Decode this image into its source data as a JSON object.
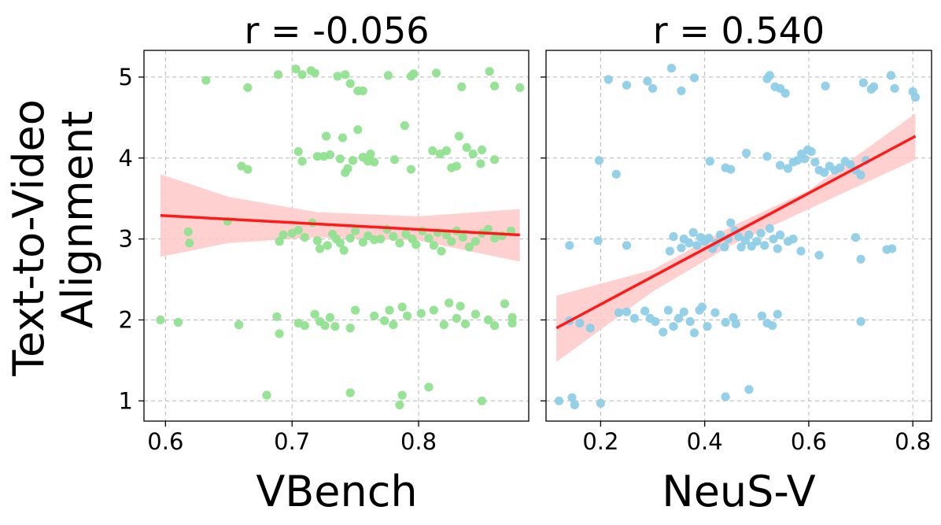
{
  "chart_data": {
    "type": "scatter",
    "ylabel_lines": [
      "Text-to-Video",
      "Alignment"
    ],
    "ylim": [
      0.75,
      5.33
    ],
    "yticks": [
      1,
      2,
      3,
      4,
      5
    ],
    "panels": [
      {
        "title": "r = -0.056",
        "xlabel": "VBench",
        "xlim": [
          0.583,
          0.887
        ],
        "xticks": [
          0.6,
          0.7,
          0.8
        ],
        "color": "#90e28f",
        "fit": {
          "x": [
            0.596,
            0.88
          ],
          "y": [
            3.29,
            3.05
          ]
        },
        "band": {
          "x": [
            0.596,
            0.65,
            0.72,
            0.8,
            0.88
          ],
          "lower": [
            2.78,
            2.95,
            3.02,
            2.98,
            2.72
          ],
          "upper": [
            3.8,
            3.52,
            3.33,
            3.28,
            3.37
          ]
        },
        "points": [
          [
            0.632,
            4.96
          ],
          [
            0.665,
            4.87
          ],
          [
            0.689,
            5.03
          ],
          [
            0.703,
            5.1
          ],
          [
            0.708,
            5.03
          ],
          [
            0.715,
            5.08
          ],
          [
            0.718,
            5.05
          ],
          [
            0.736,
            5.01
          ],
          [
            0.742,
            5.03
          ],
          [
            0.746,
            4.92
          ],
          [
            0.752,
            4.83
          ],
          [
            0.756,
            4.83
          ],
          [
            0.776,
            5.02
          ],
          [
            0.794,
            5.01
          ],
          [
            0.796,
            5.04
          ],
          [
            0.814,
            5.05
          ],
          [
            0.834,
            4.88
          ],
          [
            0.856,
            5.07
          ],
          [
            0.86,
            4.89
          ],
          [
            0.88,
            4.87
          ],
          [
            0.66,
            3.9
          ],
          [
            0.665,
            3.86
          ],
          [
            0.705,
            4.08
          ],
          [
            0.708,
            3.96
          ],
          [
            0.72,
            4.02
          ],
          [
            0.725,
            4.02
          ],
          [
            0.727,
            4.27
          ],
          [
            0.73,
            4.04
          ],
          [
            0.738,
            3.99
          ],
          [
            0.74,
            4.25
          ],
          [
            0.742,
            3.82
          ],
          [
            0.744,
            3.87
          ],
          [
            0.748,
            3.97
          ],
          [
            0.752,
            4.35
          ],
          [
            0.756,
            4.01
          ],
          [
            0.76,
            3.96
          ],
          [
            0.762,
            4.05
          ],
          [
            0.765,
            3.95
          ],
          [
            0.781,
            3.98
          ],
          [
            0.789,
            4.4
          ],
          [
            0.794,
            3.86
          ],
          [
            0.811,
            4.09
          ],
          [
            0.817,
            4.05
          ],
          [
            0.822,
            4.09
          ],
          [
            0.826,
            3.88
          ],
          [
            0.83,
            3.9
          ],
          [
            0.832,
            4.27
          ],
          [
            0.838,
            4.13
          ],
          [
            0.843,
            4.05
          ],
          [
            0.849,
            3.93
          ],
          [
            0.85,
            4.1
          ],
          [
            0.86,
            3.98
          ],
          [
            0.618,
            3.09
          ],
          [
            0.619,
            2.95
          ],
          [
            0.649,
            3.22
          ],
          [
            0.69,
            2.97
          ],
          [
            0.693,
            3.05
          ],
          [
            0.7,
            3.07
          ],
          [
            0.705,
            3.11
          ],
          [
            0.71,
            3.02
          ],
          [
            0.716,
            3.2
          ],
          [
            0.72,
            2.98
          ],
          [
            0.722,
            2.88
          ],
          [
            0.728,
            2.92
          ],
          [
            0.732,
            3.06
          ],
          [
            0.735,
            3.0
          ],
          [
            0.738,
            2.95
          ],
          [
            0.741,
            2.86
          ],
          [
            0.746,
            3.01
          ],
          [
            0.75,
            3.1
          ],
          [
            0.756,
            2.96
          ],
          [
            0.76,
            3.04
          ],
          [
            0.765,
            2.99
          ],
          [
            0.77,
            3.0
          ],
          [
            0.775,
            3.12
          ],
          [
            0.78,
            3.03
          ],
          [
            0.785,
            2.95
          ],
          [
            0.79,
            3.06
          ],
          [
            0.795,
            3.0
          ],
          [
            0.798,
            2.93
          ],
          [
            0.803,
            3.1
          ],
          [
            0.808,
            3.01
          ],
          [
            0.812,
            2.92
          ],
          [
            0.815,
            3.08
          ],
          [
            0.818,
            2.85
          ],
          [
            0.822,
            3.05
          ],
          [
            0.826,
            2.97
          ],
          [
            0.83,
            3.1
          ],
          [
            0.835,
            3.02
          ],
          [
            0.84,
            2.9
          ],
          [
            0.845,
            2.97
          ],
          [
            0.85,
            3.07
          ],
          [
            0.855,
            3.12
          ],
          [
            0.86,
            3.01
          ],
          [
            0.866,
            3.04
          ],
          [
            0.873,
            3.1
          ],
          [
            0.596,
            2.0
          ],
          [
            0.61,
            1.97
          ],
          [
            0.658,
            1.94
          ],
          [
            0.688,
            2.04
          ],
          [
            0.69,
            1.83
          ],
          [
            0.705,
            1.96
          ],
          [
            0.71,
            1.93
          ],
          [
            0.718,
            2.07
          ],
          [
            0.722,
            1.98
          ],
          [
            0.726,
            1.93
          ],
          [
            0.73,
            2.03
          ],
          [
            0.734,
            1.92
          ],
          [
            0.746,
            1.9
          ],
          [
            0.75,
            2.12
          ],
          [
            0.765,
            2.05
          ],
          [
            0.773,
            1.99
          ],
          [
            0.777,
            2.12
          ],
          [
            0.78,
            1.94
          ],
          [
            0.787,
            2.16
          ],
          [
            0.791,
            2.05
          ],
          [
            0.802,
            2.08
          ],
          [
            0.812,
            2.12
          ],
          [
            0.82,
            1.94
          ],
          [
            0.824,
            2.21
          ],
          [
            0.83,
            2.02
          ],
          [
            0.833,
            2.17
          ],
          [
            0.837,
            1.95
          ],
          [
            0.845,
            2.07
          ],
          [
            0.855,
            2.0
          ],
          [
            0.86,
            1.93
          ],
          [
            0.868,
            2.2
          ],
          [
            0.874,
            2.03
          ],
          [
            0.874,
            1.96
          ],
          [
            0.68,
            1.07
          ],
          [
            0.746,
            1.1
          ],
          [
            0.787,
            1.07
          ],
          [
            0.785,
            0.95
          ],
          [
            0.808,
            1.17
          ],
          [
            0.85,
            1.0
          ]
        ]
      },
      {
        "title": "r = 0.540",
        "xlabel": "NeuS-V",
        "xlim": [
          0.095,
          0.836
        ],
        "xticks": [
          0.2,
          0.4,
          0.6,
          0.8
        ],
        "color": "#8ecde7",
        "fit": {
          "x": [
            0.115,
            0.805
          ],
          "y": [
            1.9,
            4.27
          ]
        },
        "band": {
          "x": [
            0.115,
            0.3,
            0.45,
            0.6,
            0.805
          ],
          "lower": [
            1.48,
            2.35,
            2.92,
            3.37,
            3.98
          ],
          "upper": [
            2.3,
            2.62,
            3.15,
            3.6,
            4.55
          ]
        },
        "points": [
          [
            0.215,
            4.97
          ],
          [
            0.25,
            4.9
          ],
          [
            0.29,
            4.95
          ],
          [
            0.3,
            4.86
          ],
          [
            0.336,
            5.11
          ],
          [
            0.355,
            4.83
          ],
          [
            0.38,
            4.99
          ],
          [
            0.52,
            4.98
          ],
          [
            0.525,
            5.02
          ],
          [
            0.535,
            4.88
          ],
          [
            0.545,
            4.86
          ],
          [
            0.555,
            4.8
          ],
          [
            0.632,
            4.89
          ],
          [
            0.705,
            4.93
          ],
          [
            0.72,
            4.85
          ],
          [
            0.725,
            4.88
          ],
          [
            0.758,
            5.02
          ],
          [
            0.765,
            4.86
          ],
          [
            0.8,
            4.82
          ],
          [
            0.805,
            4.75
          ],
          [
            0.197,
            3.97
          ],
          [
            0.23,
            3.8
          ],
          [
            0.41,
            3.96
          ],
          [
            0.44,
            3.88
          ],
          [
            0.45,
            3.86
          ],
          [
            0.48,
            4.06
          ],
          [
            0.52,
            4.02
          ],
          [
            0.545,
            3.91
          ],
          [
            0.56,
            3.87
          ],
          [
            0.57,
            3.95
          ],
          [
            0.578,
            3.97
          ],
          [
            0.586,
            4.05
          ],
          [
            0.592,
            3.99
          ],
          [
            0.598,
            4.1
          ],
          [
            0.605,
            4.08
          ],
          [
            0.612,
            3.95
          ],
          [
            0.62,
            3.85
          ],
          [
            0.63,
            3.82
          ],
          [
            0.64,
            3.9
          ],
          [
            0.65,
            3.85
          ],
          [
            0.66,
            3.88
          ],
          [
            0.67,
            3.96
          ],
          [
            0.68,
            3.92
          ],
          [
            0.69,
            3.85
          ],
          [
            0.7,
            3.79
          ],
          [
            0.71,
            3.97
          ],
          [
            0.14,
            2.92
          ],
          [
            0.195,
            2.98
          ],
          [
            0.25,
            2.92
          ],
          [
            0.333,
            2.85
          ],
          [
            0.34,
            3.03
          ],
          [
            0.355,
            2.89
          ],
          [
            0.36,
            3.0
          ],
          [
            0.37,
            2.95
          ],
          [
            0.378,
            3.08
          ],
          [
            0.385,
            2.92
          ],
          [
            0.392,
            3.02
          ],
          [
            0.4,
            2.97
          ],
          [
            0.408,
            3.01
          ],
          [
            0.415,
            2.88
          ],
          [
            0.422,
            2.95
          ],
          [
            0.43,
            3.05
          ],
          [
            0.438,
            2.9
          ],
          [
            0.445,
            3.0
          ],
          [
            0.45,
            3.2
          ],
          [
            0.458,
            3.1
          ],
          [
            0.465,
            3.03
          ],
          [
            0.47,
            2.9
          ],
          [
            0.478,
            2.98
          ],
          [
            0.485,
            3.05
          ],
          [
            0.49,
            2.91
          ],
          [
            0.5,
            2.97
          ],
          [
            0.508,
            3.07
          ],
          [
            0.515,
            2.92
          ],
          [
            0.525,
            3.13
          ],
          [
            0.532,
            3.0
          ],
          [
            0.54,
            2.88
          ],
          [
            0.545,
            3.05
          ],
          [
            0.56,
            2.97
          ],
          [
            0.57,
            3.0
          ],
          [
            0.585,
            2.85
          ],
          [
            0.62,
            2.8
          ],
          [
            0.69,
            3.02
          ],
          [
            0.7,
            2.75
          ],
          [
            0.75,
            2.87
          ],
          [
            0.76,
            2.88
          ],
          [
            0.14,
            1.99
          ],
          [
            0.16,
            1.96
          ],
          [
            0.18,
            1.9
          ],
          [
            0.235,
            2.09
          ],
          [
            0.25,
            2.1
          ],
          [
            0.265,
            2.02
          ],
          [
            0.285,
            2.11
          ],
          [
            0.295,
            2.02
          ],
          [
            0.305,
            1.98
          ],
          [
            0.32,
            1.85
          ],
          [
            0.33,
            2.12
          ],
          [
            0.34,
            1.92
          ],
          [
            0.35,
            2.02
          ],
          [
            0.36,
            2.1
          ],
          [
            0.372,
            1.98
          ],
          [
            0.38,
            1.84
          ],
          [
            0.39,
            2.12
          ],
          [
            0.395,
            2.16
          ],
          [
            0.405,
            1.92
          ],
          [
            0.42,
            2.09
          ],
          [
            0.44,
            1.97
          ],
          [
            0.455,
            2.03
          ],
          [
            0.46,
            1.95
          ],
          [
            0.51,
            2.05
          ],
          [
            0.52,
            1.96
          ],
          [
            0.53,
            1.93
          ],
          [
            0.54,
            2.07
          ],
          [
            0.7,
            1.98
          ],
          [
            0.12,
            1.0
          ],
          [
            0.145,
            1.04
          ],
          [
            0.15,
            0.95
          ],
          [
            0.2,
            0.97
          ],
          [
            0.44,
            1.05
          ],
          [
            0.485,
            1.14
          ]
        ]
      }
    ]
  }
}
